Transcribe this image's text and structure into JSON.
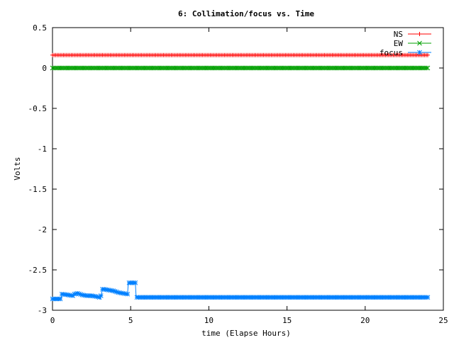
{
  "chart_data": {
    "type": "line",
    "title": "6: Collimation/focus vs. Time",
    "xlabel": "time (Elapse Hours)",
    "ylabel": "Volts",
    "xlim": [
      0,
      25
    ],
    "ylim": [
      -3,
      0.5
    ],
    "xticks": [
      0,
      5,
      10,
      15,
      20,
      25
    ],
    "yticks": [
      0.5,
      0,
      -0.5,
      -1,
      -1.5,
      -2,
      -2.5,
      -3
    ],
    "xtick_labels": [
      "0",
      "5",
      "10",
      "15",
      "20",
      "25"
    ],
    "ytick_labels": [
      "0.5",
      "0",
      "-0.5",
      "-1",
      "-1.5",
      "-2",
      "-2.5",
      "-3"
    ],
    "grid": false,
    "legend_position": "top-right",
    "series": [
      {
        "name": "NS",
        "color": "#ff0000",
        "marker": "plus",
        "x": [
          0,
          24
        ],
        "y": [
          0.16,
          0.16
        ]
      },
      {
        "name": "EW",
        "color": "#00a000",
        "marker": "cross",
        "x": [
          0,
          24
        ],
        "y": [
          0.0,
          0.0
        ]
      },
      {
        "name": "focus",
        "color": "#0080ff",
        "marker": "star",
        "x": [
          0.0,
          0.3,
          0.55,
          0.6,
          1.0,
          1.3,
          1.4,
          1.6,
          1.9,
          2.2,
          2.5,
          2.8,
          3.0,
          3.05,
          3.2,
          3.3,
          3.6,
          3.9,
          4.2,
          4.5,
          4.8,
          4.85,
          5.0,
          5.2,
          5.3,
          5.35,
          5.5,
          6,
          8,
          10,
          12,
          14,
          16,
          18,
          20,
          22,
          24
        ],
        "y": [
          -2.86,
          -2.86,
          -2.86,
          -2.8,
          -2.81,
          -2.82,
          -2.8,
          -2.79,
          -2.81,
          -2.82,
          -2.82,
          -2.83,
          -2.84,
          -2.86,
          -2.74,
          -2.74,
          -2.75,
          -2.76,
          -2.78,
          -2.79,
          -2.8,
          -2.66,
          -2.66,
          -2.66,
          -2.66,
          -2.84,
          -2.84,
          -2.84,
          -2.84,
          -2.84,
          -2.84,
          -2.84,
          -2.84,
          -2.84,
          -2.84,
          -2.84,
          -2.84
        ]
      }
    ]
  }
}
